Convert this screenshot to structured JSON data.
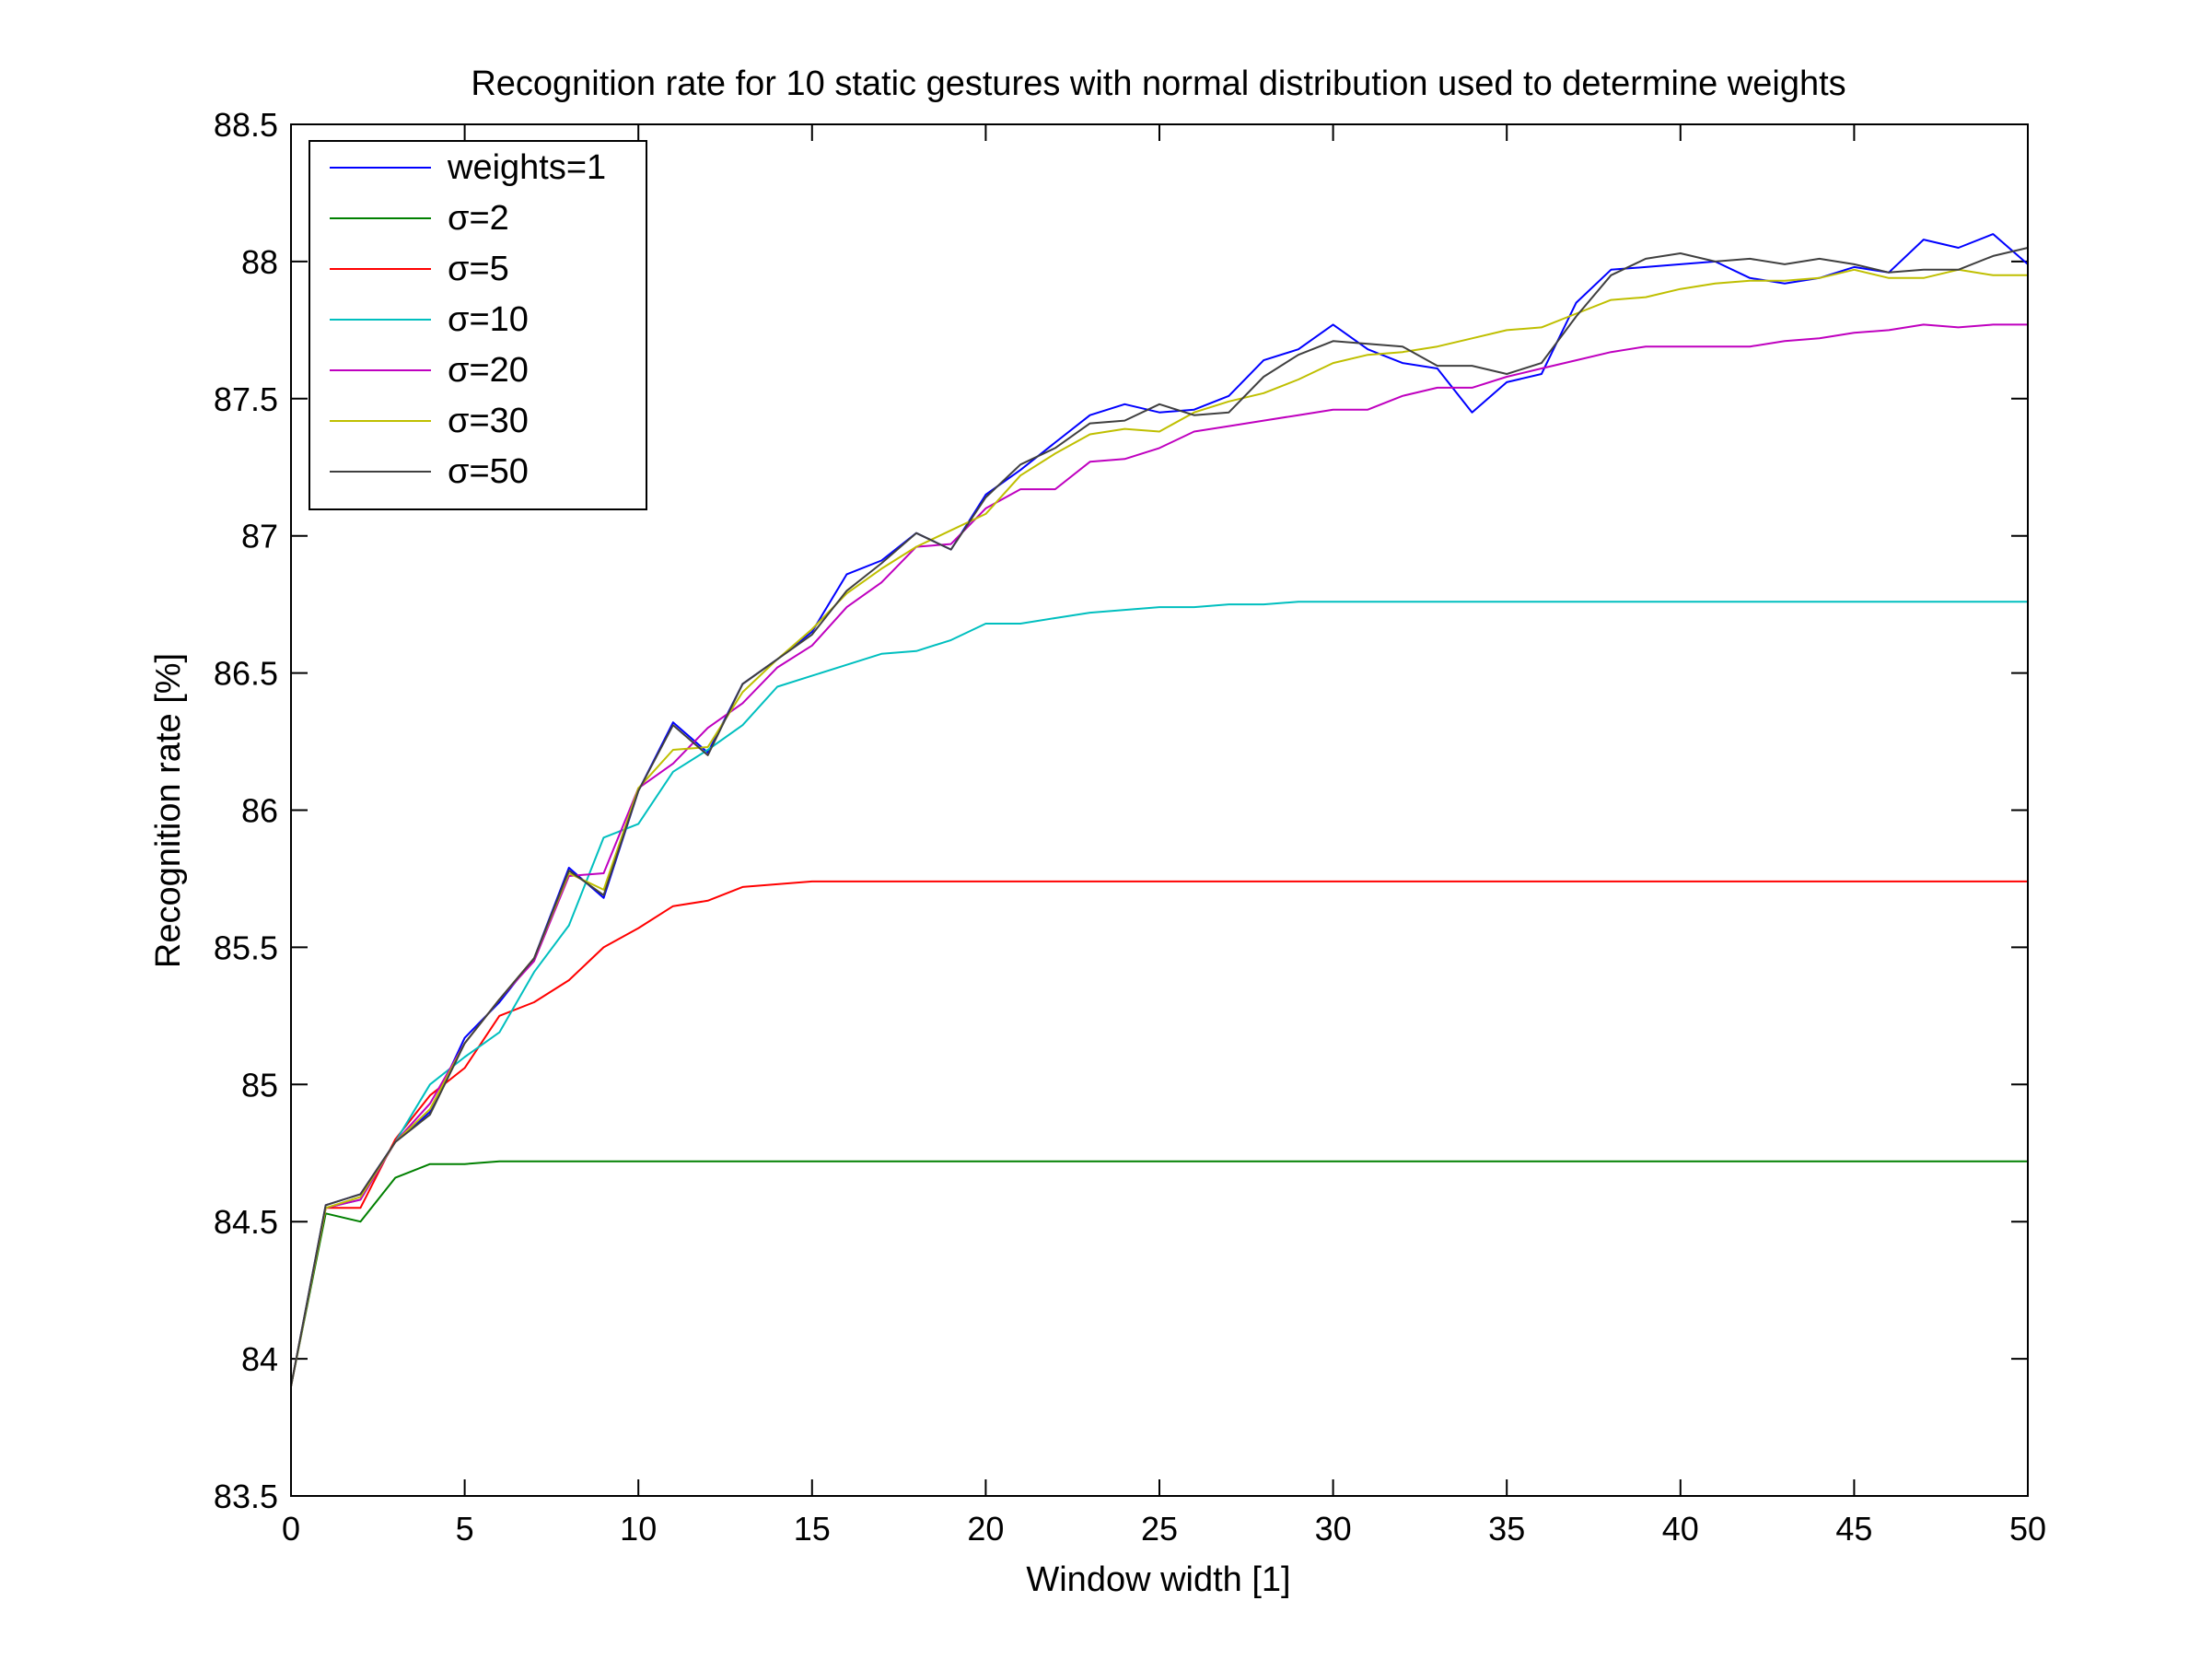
{
  "chart_data": {
    "type": "line",
    "title": "Recognition rate for 10 static gestures with normal distribution used to determine weights",
    "xlabel": "Window width [1]",
    "ylabel": "Recognition rate [%]",
    "xlim": [
      0,
      50
    ],
    "ylim": [
      83.5,
      88.5
    ],
    "xticks": [
      0,
      5,
      10,
      15,
      20,
      25,
      30,
      35,
      40,
      45,
      50
    ],
    "yticks": [
      83.5,
      84,
      84.5,
      85,
      85.5,
      86,
      86.5,
      87,
      87.5,
      88,
      88.5
    ],
    "xtick_labels": [
      "0",
      "5",
      "10",
      "15",
      "20",
      "25",
      "30",
      "35",
      "40",
      "45",
      "50"
    ],
    "ytick_labels": [
      "83.5",
      "84",
      "84.5",
      "85",
      "85.5",
      "86",
      "86.5",
      "87",
      "87.5",
      "88",
      "88.5"
    ],
    "grid": false,
    "legend_position": "top-left",
    "x": [
      0,
      1,
      2,
      3,
      4,
      5,
      6,
      7,
      8,
      9,
      10,
      11,
      12,
      13,
      14,
      15,
      16,
      17,
      18,
      19,
      20,
      21,
      22,
      23,
      24,
      25,
      26,
      27,
      28,
      29,
      30,
      31,
      32,
      33,
      34,
      35,
      36,
      37,
      38,
      39,
      40,
      41,
      42,
      43,
      44,
      45,
      46,
      47,
      48,
      49,
      50
    ],
    "series": [
      {
        "name": "weights=1",
        "color": "#0000ff",
        "values": [
          83.9,
          84.56,
          84.6,
          84.79,
          84.9,
          85.17,
          85.3,
          85.46,
          85.79,
          85.68,
          86.07,
          86.32,
          86.21,
          86.46,
          86.55,
          86.65,
          86.86,
          86.91,
          87.01,
          86.95,
          87.15,
          87.24,
          87.34,
          87.44,
          87.48,
          87.45,
          87.46,
          87.51,
          87.64,
          87.68,
          87.77,
          87.68,
          87.63,
          87.61,
          87.45,
          87.56,
          87.59,
          87.85,
          87.97,
          87.98,
          87.99,
          88.0,
          87.94,
          87.92,
          87.94,
          87.98,
          87.96,
          88.08,
          88.05,
          88.1,
          87.99
        ]
      },
      {
        "name": "σ=2",
        "color": "#008000",
        "values": [
          83.9,
          84.53,
          84.5,
          84.66,
          84.71,
          84.71,
          84.72,
          84.72,
          84.72,
          84.72,
          84.72,
          84.72,
          84.72,
          84.72,
          84.72,
          84.72,
          84.72,
          84.72,
          84.72,
          84.72,
          84.72,
          84.72,
          84.72,
          84.72,
          84.72,
          84.72,
          84.72,
          84.72,
          84.72,
          84.72,
          84.72,
          84.72,
          84.72,
          84.72,
          84.72,
          84.72,
          84.72,
          84.72,
          84.72,
          84.72,
          84.72,
          84.72,
          84.72,
          84.72,
          84.72,
          84.72,
          84.72,
          84.72,
          84.72,
          84.72,
          84.72
        ]
      },
      {
        "name": "σ=5",
        "color": "#ff0000",
        "values": [
          83.9,
          84.55,
          84.55,
          84.8,
          84.96,
          85.06,
          85.25,
          85.3,
          85.38,
          85.5,
          85.57,
          85.65,
          85.67,
          85.72,
          85.73,
          85.74,
          85.74,
          85.74,
          85.74,
          85.74,
          85.74,
          85.74,
          85.74,
          85.74,
          85.74,
          85.74,
          85.74,
          85.74,
          85.74,
          85.74,
          85.74,
          85.74,
          85.74,
          85.74,
          85.74,
          85.74,
          85.74,
          85.74,
          85.74,
          85.74,
          85.74,
          85.74,
          85.74,
          85.74,
          85.74,
          85.74,
          85.74,
          85.74,
          85.74,
          85.74,
          85.74
        ]
      },
      {
        "name": "σ=10",
        "color": "#00bfbf",
        "values": [
          83.9,
          84.55,
          84.58,
          84.79,
          85.0,
          85.1,
          85.19,
          85.41,
          85.58,
          85.9,
          85.95,
          86.14,
          86.22,
          86.31,
          86.45,
          86.49,
          86.53,
          86.57,
          86.58,
          86.62,
          86.68,
          86.68,
          86.7,
          86.72,
          86.73,
          86.74,
          86.74,
          86.75,
          86.75,
          86.76,
          86.76,
          86.76,
          86.76,
          86.76,
          86.76,
          86.76,
          86.76,
          86.76,
          86.76,
          86.76,
          86.76,
          86.76,
          86.76,
          86.76,
          86.76,
          86.76,
          86.76,
          86.76,
          86.76,
          86.76,
          86.76
        ]
      },
      {
        "name": "σ=20",
        "color": "#bf00bf",
        "values": [
          83.9,
          84.55,
          84.58,
          84.79,
          84.93,
          85.15,
          85.31,
          85.45,
          85.76,
          85.77,
          86.08,
          86.17,
          86.3,
          86.39,
          86.52,
          86.6,
          86.74,
          86.83,
          86.96,
          86.97,
          87.1,
          87.17,
          87.17,
          87.27,
          87.28,
          87.32,
          87.38,
          87.4,
          87.42,
          87.44,
          87.46,
          87.46,
          87.51,
          87.54,
          87.54,
          87.58,
          87.61,
          87.64,
          87.67,
          87.69,
          87.69,
          87.69,
          87.69,
          87.71,
          87.72,
          87.74,
          87.75,
          87.77,
          87.76,
          87.77,
          87.77
        ]
      },
      {
        "name": "σ=30",
        "color": "#bfbf00",
        "values": [
          83.9,
          84.55,
          84.59,
          84.79,
          84.91,
          85.15,
          85.31,
          85.46,
          85.77,
          85.71,
          86.08,
          86.22,
          86.23,
          86.43,
          86.55,
          86.66,
          86.79,
          86.88,
          86.96,
          87.02,
          87.08,
          87.22,
          87.3,
          87.37,
          87.39,
          87.38,
          87.45,
          87.49,
          87.52,
          87.57,
          87.63,
          87.66,
          87.67,
          87.69,
          87.72,
          87.75,
          87.76,
          87.81,
          87.86,
          87.87,
          87.9,
          87.92,
          87.93,
          87.93,
          87.94,
          87.97,
          87.94,
          87.94,
          87.97,
          87.95,
          87.95
        ]
      },
      {
        "name": "σ=50",
        "color": "#404040",
        "values": [
          83.9,
          84.56,
          84.6,
          84.79,
          84.89,
          85.15,
          85.31,
          85.46,
          85.78,
          85.69,
          86.07,
          86.31,
          86.2,
          86.46,
          86.55,
          86.64,
          86.8,
          86.9,
          87.01,
          86.95,
          87.14,
          87.26,
          87.32,
          87.41,
          87.42,
          87.48,
          87.44,
          87.45,
          87.58,
          87.66,
          87.71,
          87.7,
          87.69,
          87.62,
          87.62,
          87.59,
          87.63,
          87.8,
          87.95,
          88.01,
          88.03,
          88.0,
          88.01,
          87.99,
          88.01,
          87.99,
          87.96,
          87.97,
          87.97,
          88.02,
          88.05
        ]
      }
    ]
  }
}
